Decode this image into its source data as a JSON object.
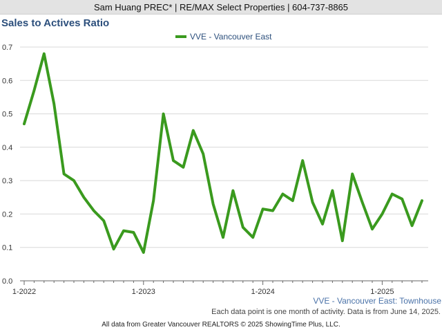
{
  "header": {
    "agent_bar": "Sam Huang PREC* | RE/MAX Select Properties | 604-737-8865"
  },
  "colors": {
    "series": "#3a9a1e",
    "title": "#2c4f7c",
    "grid": "#d8d8d8",
    "axis": "#666666"
  },
  "chart_data": {
    "type": "line",
    "title": "Sales to Actives Ratio",
    "subtitle": "VVE - Vancouver East: Townhouse",
    "xlabel": "",
    "ylabel": "",
    "ylim": [
      0.0,
      0.7
    ],
    "yticks": [
      "0.0",
      "0.1",
      "0.2",
      "0.3",
      "0.4",
      "0.5",
      "0.6",
      "0.7"
    ],
    "xticks": [
      "1-2022",
      "1-2023",
      "1-2024",
      "1-2025"
    ],
    "grid": true,
    "legend_position": "top-center",
    "x": [
      "1-2022",
      "2-2022",
      "3-2022",
      "4-2022",
      "5-2022",
      "6-2022",
      "7-2022",
      "8-2022",
      "9-2022",
      "10-2022",
      "11-2022",
      "12-2022",
      "1-2023",
      "2-2023",
      "3-2023",
      "4-2023",
      "5-2023",
      "6-2023",
      "7-2023",
      "8-2023",
      "9-2023",
      "10-2023",
      "11-2023",
      "12-2023",
      "1-2024",
      "2-2024",
      "3-2024",
      "4-2024",
      "5-2024",
      "6-2024",
      "7-2024",
      "8-2024",
      "9-2024",
      "10-2024",
      "11-2024",
      "12-2024",
      "1-2025",
      "2-2025",
      "3-2025",
      "4-2025",
      "5-2025"
    ],
    "series": [
      {
        "name": "VVE - Vancouver East",
        "values": [
          0.47,
          0.57,
          0.68,
          0.53,
          0.32,
          0.3,
          0.25,
          0.21,
          0.18,
          0.095,
          0.15,
          0.145,
          0.085,
          0.24,
          0.5,
          0.36,
          0.34,
          0.45,
          0.38,
          0.23,
          0.13,
          0.27,
          0.16,
          0.13,
          0.215,
          0.21,
          0.26,
          0.24,
          0.36,
          0.235,
          0.17,
          0.27,
          0.12,
          0.32,
          0.235,
          0.155,
          0.2,
          0.26,
          0.245,
          0.165,
          0.24
        ]
      }
    ]
  },
  "notes": {
    "data_note": "Each data point is one month of activity. Data is from June 14, 2025.",
    "copyright": "All data from Greater Vancouver REALTORS © 2025 ShowingTime Plus, LLC."
  }
}
